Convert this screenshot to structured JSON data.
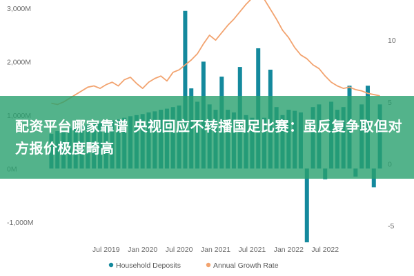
{
  "chart_data": {
    "type": "bar",
    "series": [
      {
        "name": "Household Deposits",
        "kind": "bar",
        "axis": "left",
        "color": "#14899d",
        "values": [
          650,
          700,
          720,
          760,
          780,
          800,
          820,
          840,
          860,
          880,
          900,
          920,
          950,
          980,
          1000,
          1020,
          1050,
          1070,
          1100,
          1120,
          1150,
          1180,
          2950,
          1500,
          1250,
          2000,
          1200,
          1100,
          1720,
          1100,
          1050,
          1900,
          1000,
          950,
          2250,
          950,
          1850,
          1150,
          1000,
          1100,
          1080,
          1050,
          -1380,
          1150,
          1200,
          -200,
          1250,
          1100,
          1150,
          1550,
          -150,
          1200,
          1550,
          -350,
          1200
        ]
      },
      {
        "name": "Annual Growth Rate",
        "kind": "line",
        "axis": "right",
        "color": "#f2a36f",
        "values": [
          4.9,
          4.8,
          5.0,
          5.3,
          5.6,
          5.9,
          6.2,
          6.3,
          6.1,
          6.4,
          6.6,
          6.3,
          6.8,
          7.0,
          6.5,
          6.1,
          6.6,
          6.9,
          7.1,
          6.7,
          7.4,
          7.6,
          8.0,
          8.4,
          8.9,
          9.7,
          10.4,
          10.0,
          10.6,
          11.2,
          11.7,
          12.3,
          12.9,
          13.4,
          13.6,
          13.3,
          12.5,
          11.7,
          10.8,
          10.2,
          9.4,
          8.8,
          8.5,
          8.0,
          7.7,
          7.1,
          6.6,
          6.3,
          6.1,
          6.2,
          6.0,
          5.9,
          5.7,
          5.6,
          5.5
        ]
      }
    ],
    "y_left": {
      "ticks": [
        3000,
        2000,
        1000,
        0,
        -1000
      ],
      "tick_labels": [
        "3,000M",
        "2,000M",
        "1,000M",
        "0M",
        "-1,000M"
      ],
      "range": [
        -1300,
        3050
      ]
    },
    "y_right": {
      "ticks": [
        10,
        5,
        0,
        -5
      ],
      "tick_labels": [
        "10",
        "5",
        "0",
        "-5"
      ],
      "range": [
        -6.0,
        12.8
      ]
    },
    "x_ticks": [
      {
        "label": "Jul 2019",
        "index": 9
      },
      {
        "label": "Jan 2020",
        "index": 15
      },
      {
        "label": "Jul 2020",
        "index": 21
      },
      {
        "label": "Jan 2021",
        "index": 27
      },
      {
        "label": "Jul 2021",
        "index": 33
      },
      {
        "label": "Jan 2022",
        "index": 39
      },
      {
        "label": "Jul 2022",
        "index": 45
      }
    ],
    "legend_position": "bottom",
    "grid": false
  },
  "banner": {
    "text": "配资平台哪家靠谱 央视回应不转播国足比赛：虽反复争取但对方报价极度畸高"
  }
}
